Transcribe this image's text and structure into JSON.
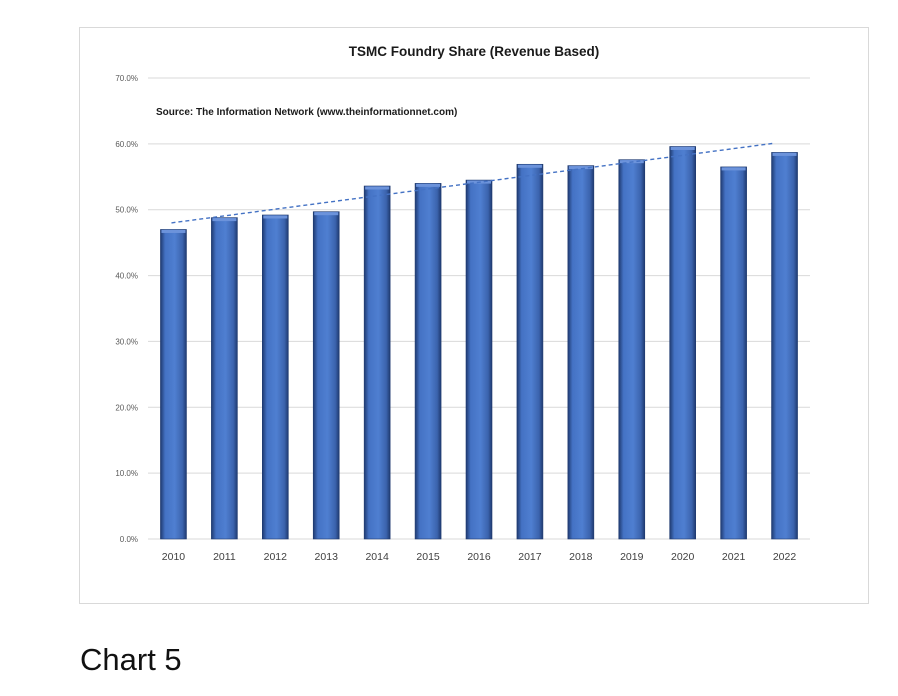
{
  "chart_data": {
    "type": "bar",
    "title": "TSMC Foundry Share (Revenue Based)",
    "subtitle": "Source: The Information Network (www.theinformationnet.com)",
    "categories": [
      "2010",
      "2011",
      "2012",
      "2013",
      "2014",
      "2015",
      "2016",
      "2017",
      "2018",
      "2019",
      "2020",
      "2021",
      "2022"
    ],
    "values": [
      47.0,
      48.8,
      49.2,
      49.7,
      53.6,
      54.0,
      54.5,
      56.9,
      56.7,
      57.6,
      59.6,
      56.5,
      58.7
    ],
    "ylim": [
      0,
      70
    ],
    "yticks": [
      "0.0%",
      "10.0%",
      "20.0%",
      "30.0%",
      "40.0%",
      "50.0%",
      "60.0%",
      "70.0%"
    ],
    "ytick_values": [
      0,
      10,
      20,
      30,
      40,
      50,
      60,
      70
    ],
    "trendline": {
      "style": "dashed",
      "start": 48.0,
      "end": 60.1
    },
    "grid": true,
    "legend": "none",
    "xlabel": "",
    "ylabel": "",
    "colors": {
      "bar": "#4472c4",
      "bar_dark": "#1f3a70",
      "trendline": "#4472c4",
      "grid": "#d9d9d9"
    }
  },
  "caption": "Chart 5"
}
